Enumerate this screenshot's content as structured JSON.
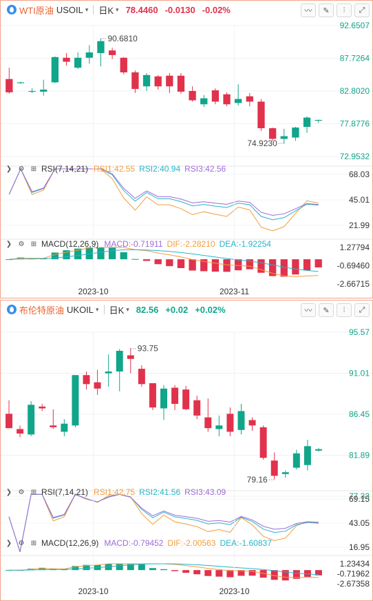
{
  "panels": [
    {
      "name": "WTI原油",
      "code": "USOIL",
      "period": "日K",
      "price": "78.4460",
      "change": "-0.0130",
      "change_pct": "-0.02%",
      "direction": "down",
      "price_axis": [
        "92.6507",
        "87.7264",
        "82.8020",
        "77.8776",
        "72.9532"
      ],
      "price_min": 72.9532,
      "price_max": 92.6507,
      "high_label": "90.6810",
      "low_label": "74.9230",
      "high_value": 90.681,
      "low_value": 74.923,
      "rsi_label": "RSI(7,14,21)",
      "rsi1": "RSI1:42.55",
      "rsi2": "RSI2:40.94",
      "rsi3": "RSI3:42.56",
      "rsi_axis": [
        "68.03",
        "45.01",
        "21.99"
      ],
      "macd_label": "MACD(12,26,9)",
      "macd_val": "MACD:-0.71911",
      "dif_val": "DIF:-2.28210",
      "dea_val": "DEA:-1.92254",
      "macd_axis": [
        "1.27794",
        "-0.69460",
        "-2.66715"
      ],
      "date_labels": [
        "2023-10",
        "2023-11"
      ]
    },
    {
      "name": "布伦特原油",
      "code": "UKOIL",
      "period": "日K",
      "price": "82.56",
      "change": "+0.02",
      "change_pct": "+0.02%",
      "direction": "up",
      "price_axis": [
        "95.57",
        "91.01",
        "86.45",
        "81.89",
        "77.33"
      ],
      "price_min": 77.33,
      "price_max": 95.57,
      "high_label": "93.75",
      "low_label": "79.16",
      "high_value": 93.75,
      "low_value": 79.16,
      "rsi_label": "RSI(7,14,21)",
      "rsi1": "RSI1:42.75",
      "rsi2": "RSI2:41.56",
      "rsi3": "RSI3:43.09",
      "rsi_axis": [
        "69.15",
        "43.05",
        "16.95"
      ],
      "macd_label": "MACD(12,26,9)",
      "macd_val": "MACD:-0.79452",
      "dif_val": "DIF:-2.00563",
      "dea_val": "DEA:-1.60837",
      "macd_axis": [
        "1.23434",
        "-0.71962",
        "-2.67358"
      ],
      "date_labels": [
        "2023-10",
        "2023-10"
      ]
    }
  ],
  "colors": {
    "up": "#11a58a",
    "down": "#e0324c",
    "rsi1": "#f39c3b",
    "rsi2": "#27b4c8",
    "rsi3": "#9d6ad8",
    "axis_text": "#11a58a",
    "border": "#f2a28a"
  },
  "chart_data": [
    {
      "type": "candlestick",
      "title": "WTI原油 USOIL 日K",
      "ylim": [
        72.9532,
        92.6507
      ],
      "ohlc": [
        [
          84.6,
          86.3,
          82.4,
          82.6
        ],
        [
          84.0,
          84.2,
          83.9,
          84.1
        ],
        [
          82.8,
          83.2,
          82.5,
          82.8
        ],
        [
          82.7,
          84.5,
          82.1,
          83.0
        ],
        [
          84.1,
          88.0,
          84.0,
          87.9
        ],
        [
          87.8,
          88.5,
          86.6,
          87.2
        ],
        [
          86.3,
          88.6,
          86.1,
          87.8
        ],
        [
          87.8,
          89.7,
          86.9,
          88.6
        ],
        [
          88.5,
          90.7,
          86.5,
          90.3
        ],
        [
          88.9,
          89.3,
          87.6,
          88.2
        ],
        [
          87.8,
          87.9,
          85.3,
          85.6
        ],
        [
          85.6,
          85.9,
          82.5,
          83.1
        ],
        [
          83.5,
          85.5,
          82.8,
          85.2
        ],
        [
          85.0,
          85.2,
          83.0,
          83.5
        ],
        [
          85.1,
          85.5,
          82.5,
          83.5
        ],
        [
          85.1,
          85.5,
          82.4,
          82.7
        ],
        [
          82.8,
          83.5,
          81.2,
          81.4
        ],
        [
          80.8,
          82.2,
          80.4,
          81.7
        ],
        [
          82.9,
          83.2,
          80.8,
          81.2
        ],
        [
          82.3,
          82.6,
          80.5,
          80.8
        ],
        [
          81.0,
          83.8,
          80.6,
          81.6
        ],
        [
          82.0,
          82.5,
          80.5,
          81.2
        ],
        [
          81.2,
          81.6,
          76.8,
          77.2
        ],
        [
          77.2,
          77.3,
          75.3,
          75.6
        ],
        [
          75.6,
          77.1,
          74.9,
          76.0
        ],
        [
          75.8,
          77.4,
          75.3,
          77.3
        ],
        [
          77.4,
          79.0,
          76.5,
          78.8
        ],
        [
          78.4,
          78.5,
          78.0,
          78.45
        ]
      ]
    },
    {
      "type": "candlestick",
      "title": "布伦特原油 UKOIL 日K",
      "ylim": [
        77.33,
        95.57
      ],
      "ohlc": [
        [
          86.5,
          88.0,
          84.9,
          84.9
        ],
        [
          84.8,
          85.2,
          83.9,
          84.3
        ],
        [
          84.2,
          87.9,
          84.0,
          87.5
        ],
        [
          87.3,
          87.6,
          86.8,
          87.1
        ],
        [
          85.2,
          87.0,
          84.8,
          85.0
        ],
        [
          84.5,
          85.9,
          84.0,
          85.4
        ],
        [
          85.2,
          90.8,
          85.0,
          90.8
        ],
        [
          90.8,
          91.2,
          89.2,
          89.8
        ],
        [
          90.0,
          91.4,
          88.6,
          89.3
        ],
        [
          91.0,
          93.1,
          89.5,
          91.2
        ],
        [
          91.2,
          93.7,
          89.0,
          93.5
        ],
        [
          93.0,
          93.8,
          91.0,
          92.6
        ],
        [
          91.5,
          91.9,
          89.5,
          89.8
        ],
        [
          89.9,
          89.9,
          86.9,
          87.2
        ],
        [
          87.1,
          89.7,
          85.8,
          89.3
        ],
        [
          89.4,
          89.7,
          86.9,
          87.6
        ],
        [
          89.2,
          89.6,
          86.9,
          87.0
        ],
        [
          88.0,
          88.5,
          85.9,
          86.3
        ],
        [
          86.1,
          88.2,
          84.5,
          84.9
        ],
        [
          84.8,
          86.3,
          84.0,
          85.2
        ],
        [
          86.5,
          87.2,
          84.0,
          84.5
        ],
        [
          84.7,
          87.6,
          84.2,
          86.8
        ],
        [
          85.8,
          86.1,
          84.6,
          85.2
        ],
        [
          85.0,
          85.2,
          81.4,
          81.6
        ],
        [
          81.3,
          82.2,
          79.2,
          79.6
        ],
        [
          79.8,
          80.2,
          79.4,
          80.0
        ],
        [
          80.5,
          82.5,
          80.3,
          82.1
        ],
        [
          80.8,
          83.6,
          80.2,
          82.9
        ],
        [
          82.4,
          82.7,
          82.3,
          82.56
        ]
      ]
    }
  ]
}
